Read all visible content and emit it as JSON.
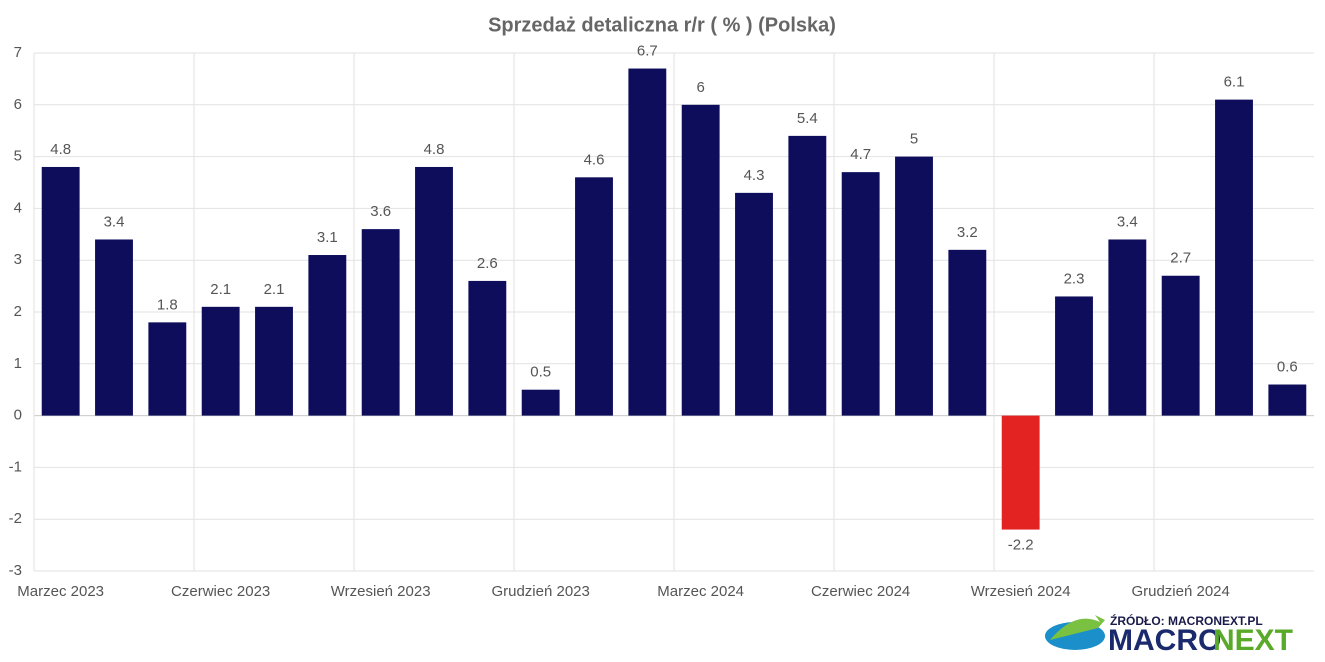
{
  "chart_data": {
    "type": "bar",
    "title": "Sprzedaż detaliczna r/r ( % ) (Polska)",
    "categories": [
      "Marzec 2023",
      null,
      null,
      "Czerwiec 2023",
      null,
      null,
      "Wrzesień 2023",
      null,
      null,
      "Grudzień 2023",
      null,
      null,
      "Marzec 2024",
      null,
      null,
      "Czerwiec 2024",
      null,
      null,
      "Wrzesień 2024",
      null,
      null,
      "Grudzień 2024",
      null,
      null
    ],
    "values": [
      4.8,
      3.4,
      1.8,
      2.1,
      2.1,
      3.1,
      3.6,
      4.8,
      2.6,
      0.5,
      4.6,
      6.7,
      6,
      4.3,
      5.4,
      4.7,
      5,
      3.2,
      -2.2,
      2.3,
      3.4,
      2.7,
      6.1,
      0.6
    ],
    "color": "#0d0d5c",
    "negative_color": "#e32222",
    "ylim": [
      -3,
      7
    ],
    "yticks": [
      -3,
      -2,
      -1,
      0,
      1,
      2,
      3,
      4,
      5,
      6,
      7
    ],
    "grid": true,
    "source": "ŹRÓDŁO: MACRONEXT.PL",
    "logo": [
      "MACRO",
      "NEXT"
    ]
  }
}
